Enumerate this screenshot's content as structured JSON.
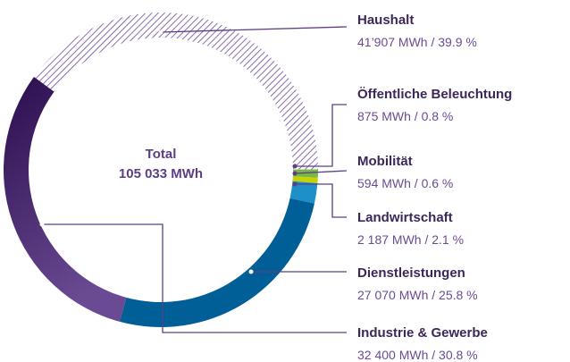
{
  "chart_data": {
    "type": "pie",
    "center_label": [
      "Total",
      "105 033 MWh"
    ],
    "categories": [
      "Haushalt",
      "Öffentliche Beleuchtung",
      "Mobilität",
      "Landwirtschaft",
      "Dienstleistungen",
      "Industrie & Gewerbe"
    ],
    "values": [
      41907,
      875,
      594,
      2187,
      27070,
      32400
    ],
    "value_labels": [
      "41’907 MWh / 39.9 %",
      "875 MWh / 0.8 %",
      "594 MWh / 0.6 %",
      "2 187 MWh / 2.1 %",
      "27 070 MWh / 25.8 %",
      "32 400 MWh / 30.8 %"
    ],
    "colors": [
      "#7b5ca3",
      "#7ab648",
      "#c5d300",
      "#1d8fc9",
      "#005f97",
      "#4a2c78"
    ]
  }
}
